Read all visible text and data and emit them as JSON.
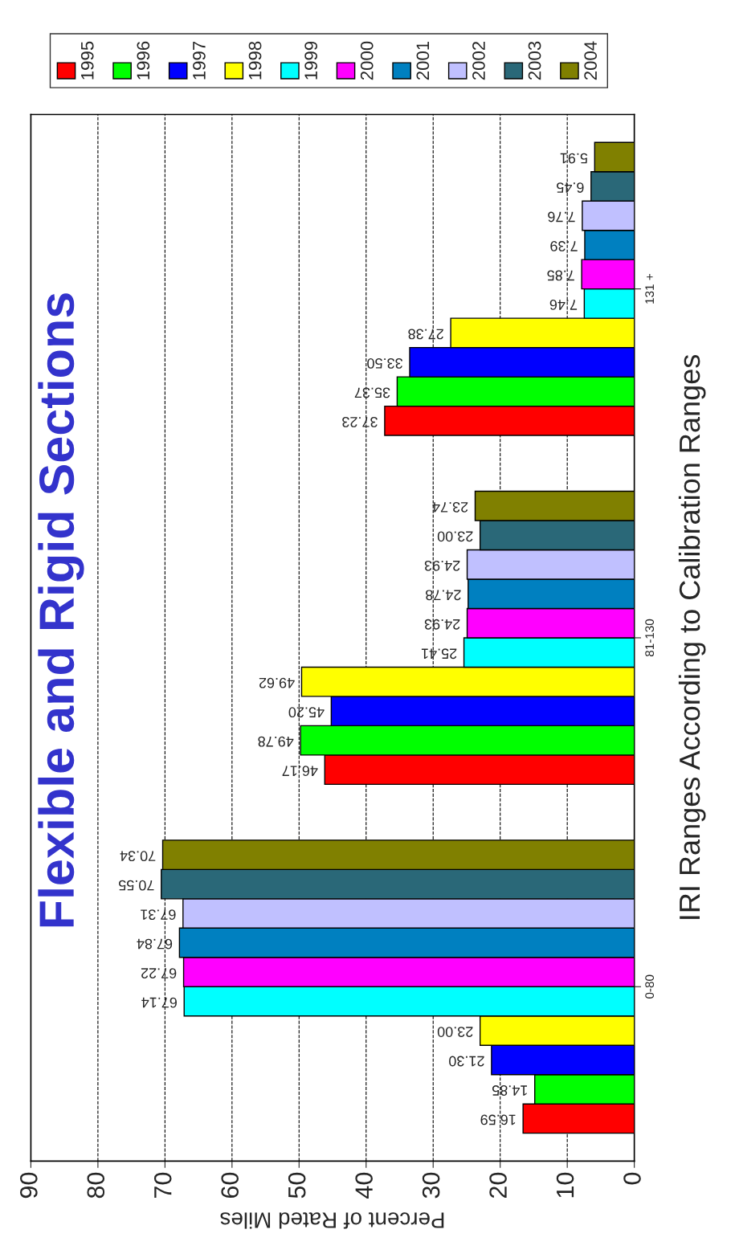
{
  "chart_data": {
    "type": "bar",
    "orientation": "horizontal",
    "title": "Flexible and Rigid Sections",
    "xlabel": "Percent of Rated Miles",
    "ylabel": "IRI Ranges According to Calibration Ranges",
    "categories": [
      "131 +",
      "81-130",
      "0-80"
    ],
    "xlim": [
      90,
      0
    ],
    "xticks": [
      0,
      10,
      20,
      30,
      40,
      50,
      60,
      70,
      80,
      90
    ],
    "grid": "x",
    "legend": "top right",
    "series": [
      {
        "name": "1995",
        "color": "#ff0000",
        "values": [
          37.23,
          46.17,
          16.59
        ],
        "value_labels": [
          "37.23",
          "46.17",
          "16.59"
        ]
      },
      {
        "name": "1996",
        "color": "#00ff00",
        "values": [
          35.37,
          49.78,
          14.85
        ],
        "value_labels": [
          "35.37",
          "49.78",
          "14.85"
        ]
      },
      {
        "name": "1997",
        "color": "#0000ff",
        "values": [
          33.5,
          45.2,
          21.3
        ],
        "value_labels": [
          "33.50",
          "45.20",
          "21.30"
        ]
      },
      {
        "name": "1998",
        "color": "#ffff00",
        "values": [
          27.38,
          49.62,
          23.0
        ],
        "value_labels": [
          "27.38",
          "49.62",
          "23.00"
        ]
      },
      {
        "name": "1999",
        "color": "#00ffff",
        "values": [
          7.46,
          25.41,
          67.14
        ],
        "value_labels": [
          "7.46",
          "25.41",
          "67.14"
        ]
      },
      {
        "name": "2000",
        "color": "#ff00ff",
        "values": [
          7.85,
          24.93,
          67.22
        ],
        "value_labels": [
          "7.85",
          "24.93",
          "67.22"
        ]
      },
      {
        "name": "2001",
        "color": "#0080c0",
        "values": [
          7.39,
          24.78,
          67.84
        ],
        "value_labels": [
          "7.39",
          "24.78",
          "67.84"
        ]
      },
      {
        "name": "2002",
        "color": "#c0c0ff",
        "values": [
          7.76,
          24.93,
          67.31
        ],
        "value_labels": [
          "7.76",
          "24.93",
          "67.31"
        ]
      },
      {
        "name": "2003",
        "color": "#2a6878",
        "values": [
          6.45,
          23.0,
          70.55
        ],
        "value_labels": [
          "6.45",
          "23.00",
          "70.55"
        ]
      },
      {
        "name": "2004",
        "color": "#808000",
        "values": [
          5.91,
          23.74,
          70.34
        ],
        "value_labels": [
          "5.91",
          "23.74",
          "70.34"
        ]
      }
    ]
  }
}
